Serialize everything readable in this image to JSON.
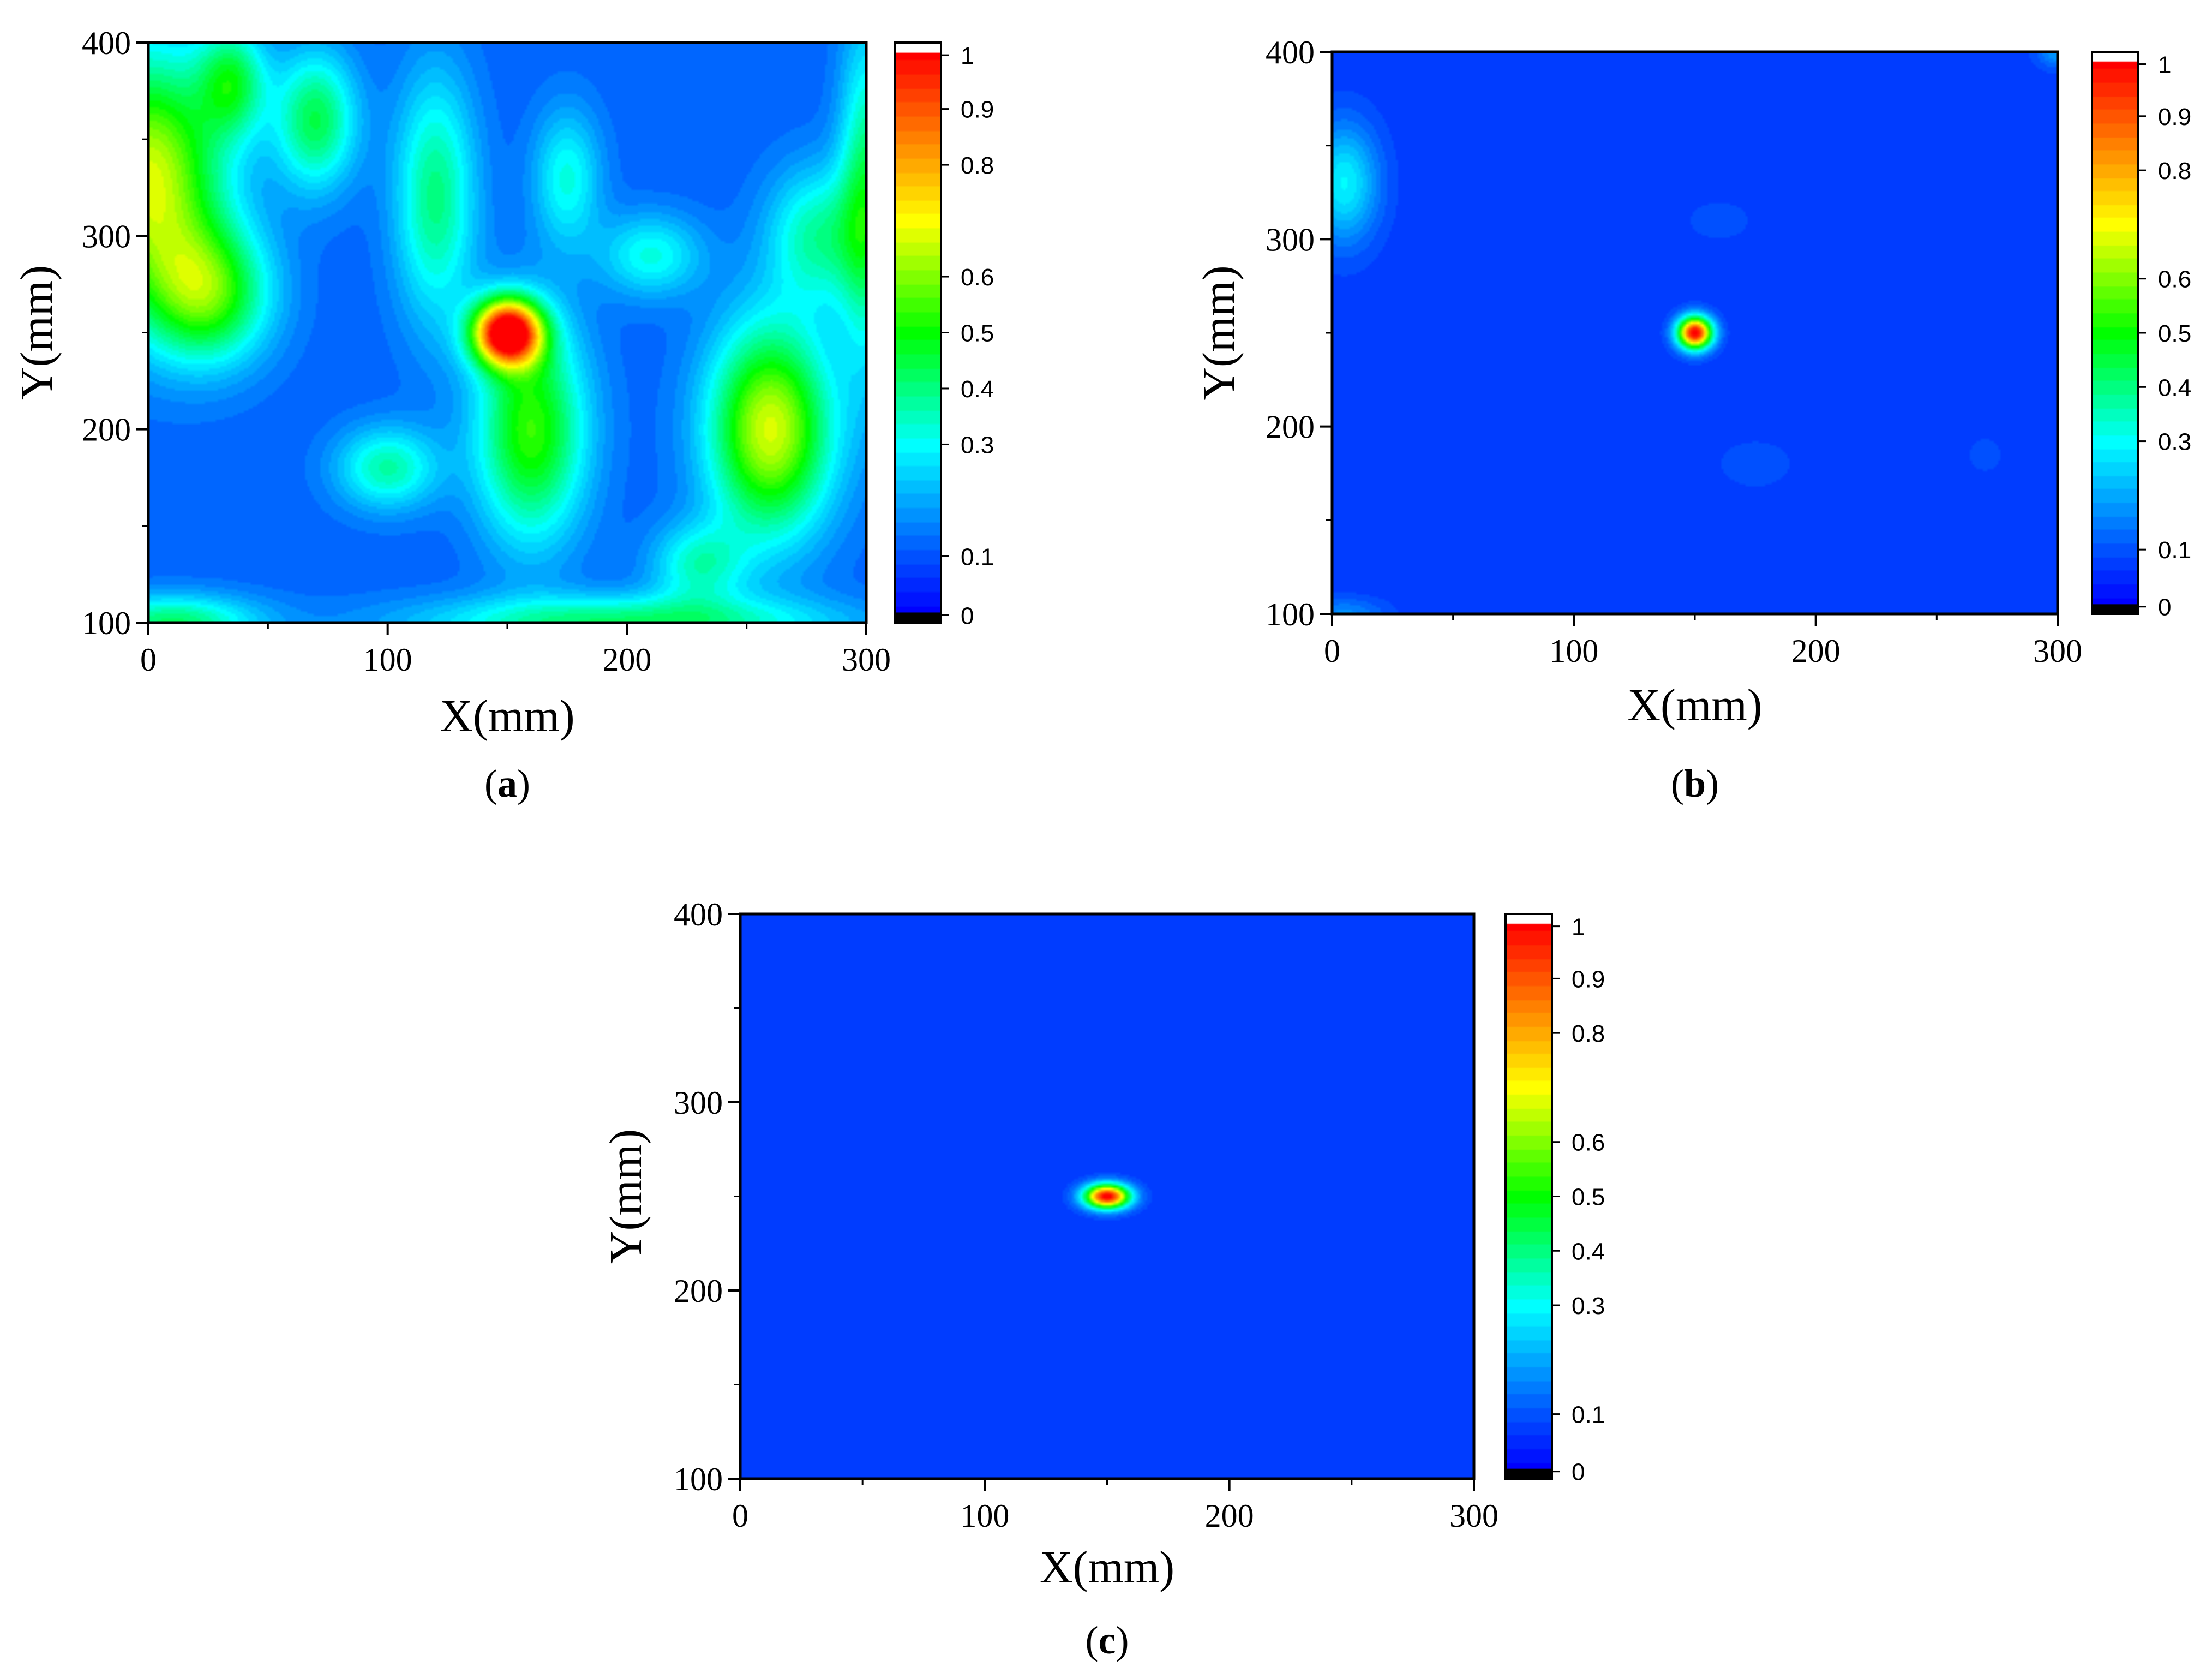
{
  "figure": {
    "colorscale": [
      "#000000",
      "#0000ff",
      "#0050ff",
      "#00a8ff",
      "#00ffff",
      "#00ff80",
      "#00ff00",
      "#80ff00",
      "#ffff00",
      "#ffaa00",
      "#ff5500",
      "#ff0000",
      "#ffffff"
    ]
  },
  "chart_data": [
    {
      "type": "heatmap",
      "panel_label": "a",
      "xlabel": "X(mm)",
      "ylabel": "Y(mm)",
      "xlim": [
        0,
        300
      ],
      "ylim": [
        100,
        400
      ],
      "xticks": [
        "0",
        "100",
        "200",
        "300"
      ],
      "yticks": [
        "100",
        "200",
        "300",
        "400"
      ],
      "colorbar": {
        "range": [
          0,
          1
        ],
        "ticks": [
          "0",
          "0.1",
          "0.3",
          "0.4",
          "0.5",
          "0.6",
          "0.8",
          "0.9",
          "1"
        ],
        "tick_values": [
          0,
          0.1,
          0.3,
          0.4,
          0.5,
          0.6,
          0.8,
          0.9,
          1
        ]
      },
      "background_value": 0.12,
      "peak": {
        "x": 150,
        "y": 250,
        "value": 1.0
      },
      "features": [
        {
          "x": 150,
          "y": 250,
          "value": 0.95,
          "sx": 10,
          "sy": 12
        },
        {
          "x": 160,
          "y": 200,
          "value": 0.42,
          "sx": 16,
          "sy": 40
        },
        {
          "x": 120,
          "y": 320,
          "value": 0.28,
          "sx": 12,
          "sy": 45
        },
        {
          "x": 0,
          "y": 330,
          "value": 0.55,
          "sx": 22,
          "sy": 45
        },
        {
          "x": 25,
          "y": 270,
          "value": 0.4,
          "sx": 18,
          "sy": 25
        },
        {
          "x": 35,
          "y": 380,
          "value": 0.3,
          "sx": 10,
          "sy": 20
        },
        {
          "x": 70,
          "y": 360,
          "value": 0.32,
          "sx": 12,
          "sy": 25
        },
        {
          "x": 260,
          "y": 200,
          "value": 0.55,
          "sx": 18,
          "sy": 38
        },
        {
          "x": 100,
          "y": 180,
          "value": 0.25,
          "sx": 15,
          "sy": 15
        },
        {
          "x": 300,
          "y": 320,
          "value": 0.3,
          "sx": 8,
          "sy": 60
        },
        {
          "x": 200,
          "y": 100,
          "value": 0.3,
          "sx": 60,
          "sy": 10
        },
        {
          "x": 10,
          "y": 100,
          "value": 0.3,
          "sx": 25,
          "sy": 10
        },
        {
          "x": 280,
          "y": 300,
          "value": 0.25,
          "sx": 15,
          "sy": 25
        },
        {
          "x": 210,
          "y": 290,
          "value": 0.2,
          "sx": 15,
          "sy": 15
        },
        {
          "x": 230,
          "y": 130,
          "value": 0.22,
          "sx": 14,
          "sy": 15
        },
        {
          "x": 175,
          "y": 330,
          "value": 0.2,
          "sx": 10,
          "sy": 25
        }
      ]
    },
    {
      "type": "heatmap",
      "panel_label": "b",
      "xlabel": "X(mm)",
      "ylabel": "Y(mm)",
      "xlim": [
        0,
        300
      ],
      "ylim": [
        100,
        400
      ],
      "xticks": [
        "0",
        "100",
        "200",
        "300"
      ],
      "yticks": [
        "100",
        "200",
        "300",
        "400"
      ],
      "colorbar": {
        "range": [
          0,
          1
        ],
        "ticks": [
          "0",
          "0.1",
          "0.3",
          "0.4",
          "0.5",
          "0.6",
          "0.8",
          "0.9",
          "1"
        ],
        "tick_values": [
          0,
          0.1,
          0.3,
          0.4,
          0.5,
          0.6,
          0.8,
          0.9,
          1
        ]
      },
      "background_value": 0.07,
      "peak": {
        "x": 150,
        "y": 250,
        "value": 1.0
      },
      "features": [
        {
          "x": 150,
          "y": 250,
          "value": 0.95,
          "sx": 5,
          "sy": 6
        },
        {
          "x": 5,
          "y": 330,
          "value": 0.22,
          "sx": 10,
          "sy": 22
        },
        {
          "x": 5,
          "y": 100,
          "value": 0.1,
          "sx": 12,
          "sy": 6
        },
        {
          "x": 300,
          "y": 400,
          "value": 0.12,
          "sx": 6,
          "sy": 6
        },
        {
          "x": 160,
          "y": 310,
          "value": 0.035,
          "sx": 10,
          "sy": 8
        },
        {
          "x": 175,
          "y": 180,
          "value": 0.035,
          "sx": 12,
          "sy": 10
        },
        {
          "x": 270,
          "y": 185,
          "value": 0.03,
          "sx": 6,
          "sy": 8
        }
      ]
    },
    {
      "type": "heatmap",
      "panel_label": "c",
      "xlabel": "X(mm)",
      "ylabel": "Y(mm)",
      "xlim": [
        0,
        300
      ],
      "ylim": [
        100,
        400
      ],
      "xticks": [
        "0",
        "100",
        "200",
        "300"
      ],
      "yticks": [
        "100",
        "200",
        "300",
        "400"
      ],
      "colorbar": {
        "range": [
          0,
          1
        ],
        "ticks": [
          "0",
          "0.1",
          "0.3",
          "0.4",
          "0.5",
          "0.6",
          "0.8",
          "0.9",
          "1"
        ],
        "tick_values": [
          0,
          0.1,
          0.3,
          0.4,
          0.5,
          0.6,
          0.8,
          0.9,
          1
        ]
      },
      "background_value": 0.07,
      "peak": {
        "x": 150,
        "y": 250,
        "value": 1.0
      },
      "features": [
        {
          "x": 150,
          "y": 250,
          "value": 0.95,
          "sx": 6.5,
          "sy": 4.5
        }
      ]
    }
  ]
}
